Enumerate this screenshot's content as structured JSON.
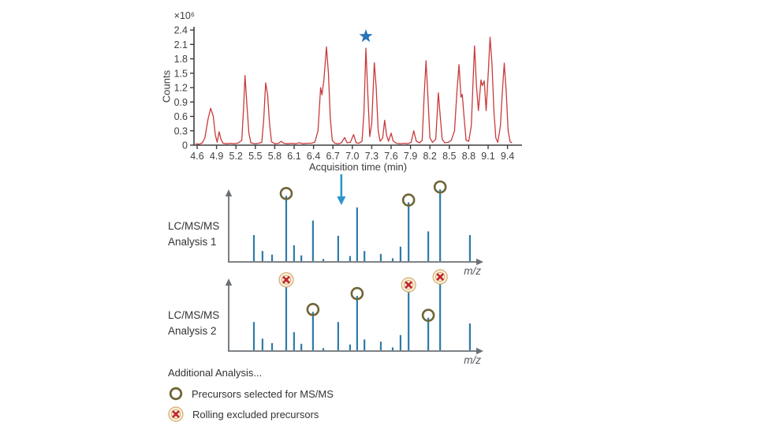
{
  "chromatogram": {
    "ylabel": "Counts",
    "y_multiplier": "×10⁶",
    "xlabel": "Acquisition time (min)",
    "x_ticks": [
      "4.6",
      "4.9",
      "5.2",
      "5.5",
      "5.8",
      "6.1",
      "6.4",
      "6.7",
      "7.0",
      "7.3",
      "7.6",
      "7.9",
      "8.2",
      "8.5",
      "8.8",
      "9.1",
      "9.4"
    ],
    "y_ticks": [
      "0",
      "0.3",
      "0.6",
      "0.9",
      "1.2",
      "1.5",
      "1.8",
      "2.1",
      "2.4"
    ],
    "line_color": "#c93a3c",
    "axis_color": "#3d3d3d",
    "star": {
      "time_min": 7.21,
      "color": "#2674b5"
    },
    "trace_time_min_vs_counts_e6": [
      [
        4.58,
        0.03
      ],
      [
        4.63,
        0.02
      ],
      [
        4.68,
        0.05
      ],
      [
        4.72,
        0.15
      ],
      [
        4.77,
        0.55
      ],
      [
        4.81,
        0.77
      ],
      [
        4.85,
        0.6
      ],
      [
        4.88,
        0.22
      ],
      [
        4.91,
        0.06
      ],
      [
        4.94,
        0.28
      ],
      [
        4.97,
        0.12
      ],
      [
        5.0,
        0.04
      ],
      [
        5.06,
        0.03
      ],
      [
        5.12,
        0.04
      ],
      [
        5.18,
        0.03
      ],
      [
        5.24,
        0.05
      ],
      [
        5.29,
        0.1
      ],
      [
        5.32,
        0.8
      ],
      [
        5.34,
        1.45
      ],
      [
        5.37,
        0.85
      ],
      [
        5.4,
        0.25
      ],
      [
        5.43,
        0.05
      ],
      [
        5.49,
        0.03
      ],
      [
        5.55,
        0.04
      ],
      [
        5.6,
        0.06
      ],
      [
        5.63,
        0.55
      ],
      [
        5.66,
        1.3
      ],
      [
        5.69,
        1.05
      ],
      [
        5.72,
        0.45
      ],
      [
        5.75,
        0.07
      ],
      [
        5.8,
        0.03
      ],
      [
        5.86,
        0.04
      ],
      [
        5.9,
        0.08
      ],
      [
        5.94,
        0.04
      ],
      [
        6.0,
        0.03
      ],
      [
        6.06,
        0.04
      ],
      [
        6.12,
        0.03
      ],
      [
        6.18,
        0.05
      ],
      [
        6.24,
        0.03
      ],
      [
        6.3,
        0.04
      ],
      [
        6.36,
        0.04
      ],
      [
        6.42,
        0.06
      ],
      [
        6.47,
        0.3
      ],
      [
        6.51,
        1.2
      ],
      [
        6.53,
        1.05
      ],
      [
        6.56,
        1.35
      ],
      [
        6.6,
        2.05
      ],
      [
        6.63,
        1.5
      ],
      [
        6.66,
        0.55
      ],
      [
        6.69,
        0.1
      ],
      [
        6.73,
        0.04
      ],
      [
        6.78,
        0.03
      ],
      [
        6.83,
        0.05
      ],
      [
        6.88,
        0.16
      ],
      [
        6.92,
        0.05
      ],
      [
        6.97,
        0.06
      ],
      [
        7.02,
        0.22
      ],
      [
        7.06,
        0.05
      ],
      [
        7.1,
        0.04
      ],
      [
        7.15,
        0.08
      ],
      [
        7.18,
        0.7
      ],
      [
        7.21,
        2.02
      ],
      [
        7.24,
        1.05
      ],
      [
        7.27,
        0.18
      ],
      [
        7.3,
        0.45
      ],
      [
        7.34,
        1.72
      ],
      [
        7.37,
        1.2
      ],
      [
        7.4,
        0.3
      ],
      [
        7.43,
        0.08
      ],
      [
        7.47,
        0.15
      ],
      [
        7.5,
        0.52
      ],
      [
        7.53,
        0.2
      ],
      [
        7.56,
        0.08
      ],
      [
        7.6,
        0.25
      ],
      [
        7.63,
        0.09
      ],
      [
        7.68,
        0.04
      ],
      [
        7.74,
        0.03
      ],
      [
        7.8,
        0.04
      ],
      [
        7.86,
        0.03
      ],
      [
        7.91,
        0.06
      ],
      [
        7.95,
        0.3
      ],
      [
        7.99,
        0.08
      ],
      [
        8.04,
        0.05
      ],
      [
        8.08,
        0.1
      ],
      [
        8.11,
        1.0
      ],
      [
        8.14,
        1.76
      ],
      [
        8.17,
        1.0
      ],
      [
        8.2,
        0.15
      ],
      [
        8.24,
        0.06
      ],
      [
        8.29,
        0.12
      ],
      [
        8.33,
        1.09
      ],
      [
        8.36,
        0.6
      ],
      [
        8.39,
        0.12
      ],
      [
        8.43,
        0.05
      ],
      [
        8.48,
        0.06
      ],
      [
        8.53,
        0.1
      ],
      [
        8.58,
        0.3
      ],
      [
        8.62,
        1.15
      ],
      [
        8.65,
        1.68
      ],
      [
        8.68,
        1.0
      ],
      [
        8.7,
        1.06
      ],
      [
        8.73,
        0.55
      ],
      [
        8.76,
        0.1
      ],
      [
        8.8,
        0.08
      ],
      [
        8.84,
        0.4
      ],
      [
        8.87,
        1.4
      ],
      [
        8.89,
        2.07
      ],
      [
        8.92,
        1.25
      ],
      [
        8.95,
        0.72
      ],
      [
        8.99,
        1.36
      ],
      [
        9.01,
        1.24
      ],
      [
        9.04,
        1.34
      ],
      [
        9.07,
        0.72
      ],
      [
        9.1,
        1.45
      ],
      [
        9.13,
        2.25
      ],
      [
        9.16,
        1.7
      ],
      [
        9.19,
        0.7
      ],
      [
        9.22,
        0.15
      ],
      [
        9.25,
        0.06
      ],
      [
        9.29,
        0.4
      ],
      [
        9.32,
        1.1
      ],
      [
        9.35,
        1.71
      ],
      [
        9.38,
        1.1
      ],
      [
        9.41,
        0.3
      ],
      [
        9.44,
        0.07
      ],
      [
        9.47,
        0.05
      ]
    ]
  },
  "selection_arrow": {
    "time_min": 6.83,
    "color": "#2c95cb"
  },
  "spectra": {
    "mz_label": "m/z",
    "peak_color": "#2e7ba9",
    "axis_color": "#6b7075",
    "selected_marker_color": "#6f6436",
    "excluded_marker": {
      "x_color": "#c2262e",
      "ring_color": "#d4a96f",
      "fill_color": "#f9f1dd"
    },
    "peak_positions_pct": [
      10.0,
      13.4,
      17.2,
      22.8,
      25.9,
      28.8,
      33.4,
      37.5,
      43.4,
      48.1,
      50.9,
      53.8,
      60.3,
      65.0,
      68.1,
      71.3,
      79.1,
      83.8,
      95.6
    ],
    "analyses": [
      {
        "label_line1": "LC/MS/MS",
        "label_line2": "Analysis 1",
        "heights_pct": [
          37,
          15,
          10,
          91,
          23,
          9,
          57,
          4,
          36,
          8,
          75,
          15,
          11,
          5,
          21,
          82,
          42,
          100,
          37
        ],
        "markers": [
          {
            "index": 3,
            "type": "selected"
          },
          {
            "index": 15,
            "type": "selected"
          },
          {
            "index": 17,
            "type": "selected"
          }
        ]
      },
      {
        "label_line1": "LC/MS/MS",
        "label_line2": "Analysis 2",
        "heights_pct": [
          40,
          17,
          11,
          96,
          26,
          10,
          54,
          4,
          40,
          9,
          76,
          16,
          13,
          5,
          22,
          89,
          46,
          100,
          38
        ],
        "markers": [
          {
            "index": 3,
            "type": "excluded"
          },
          {
            "index": 6,
            "type": "selected"
          },
          {
            "index": 10,
            "type": "selected"
          },
          {
            "index": 15,
            "type": "excluded"
          },
          {
            "index": 16,
            "type": "selected"
          },
          {
            "index": 17,
            "type": "excluded"
          }
        ]
      }
    ]
  },
  "legend": {
    "intro": "Additional Analysis...",
    "items": [
      {
        "icon": "selected-circle-icon",
        "label": "Precursors selected for MS/MS"
      },
      {
        "icon": "excluded-x-icon",
        "label": "Rolling excluded precursors"
      }
    ]
  }
}
